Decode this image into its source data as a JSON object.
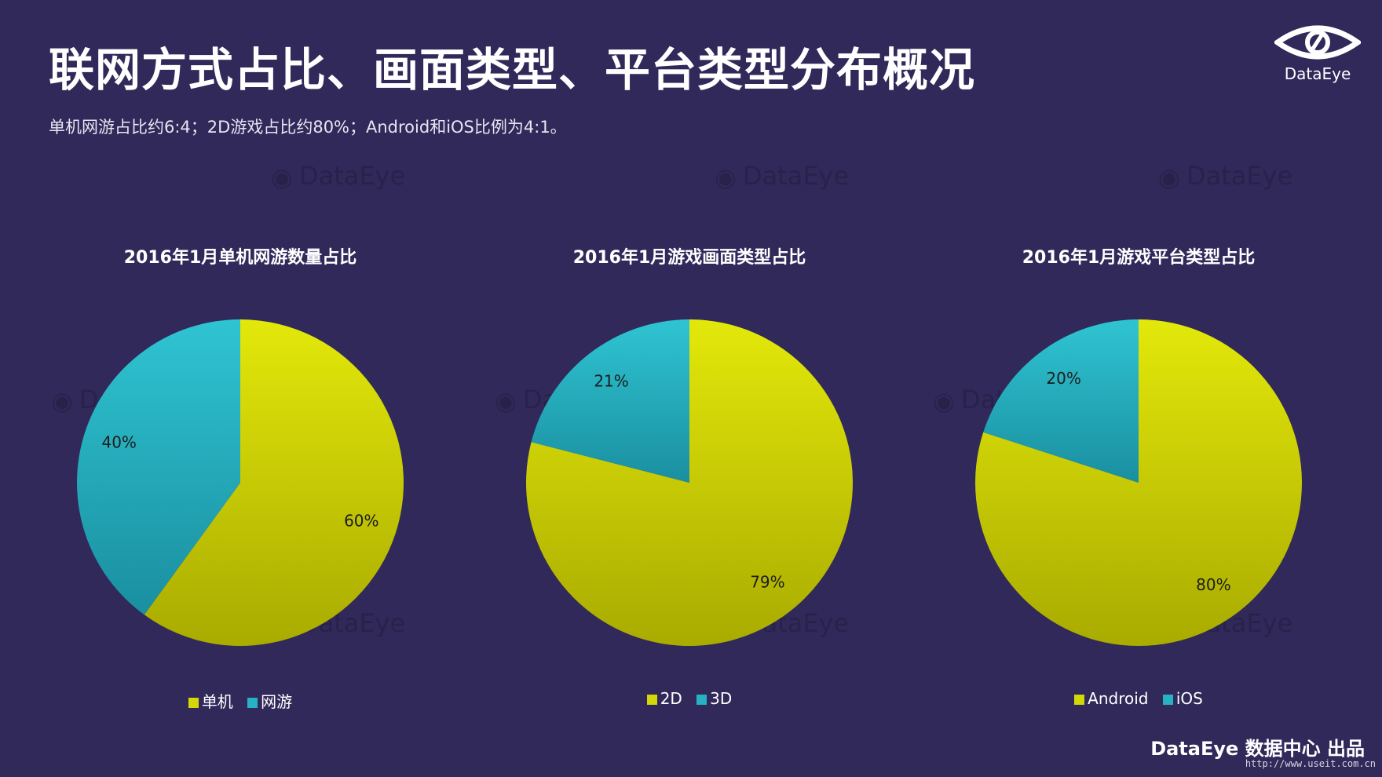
{
  "page": {
    "title": "联网方式占比、画面类型、平台类型分布概况",
    "subtitle": "单机网游占比约6:4；2D游戏占比约80%；Android和iOS比例为4:1。",
    "logo_text": "DataEye",
    "footer": "DataEye 数据中心 出品",
    "watermark_text": "DataEye",
    "watermark_url": "http://www.useit.com.cn"
  },
  "colors": {
    "background": "#30295a",
    "primary_slice_top": "#e3e80a",
    "primary_slice_bottom": "#a9ab00",
    "secondary_slice_top": "#2fc4d2",
    "secondary_slice_bottom": "#1a8fa0"
  },
  "chart_data": [
    {
      "type": "pie",
      "title": "2016年1月单机网游数量占比",
      "categories": [
        "单机",
        "网游"
      ],
      "values": [
        60,
        40
      ],
      "labels": [
        "60%",
        "40%"
      ],
      "legend": "bottom"
    },
    {
      "type": "pie",
      "title": "2016年1月游戏画面类型占比",
      "categories": [
        "2D",
        "3D"
      ],
      "values": [
        79,
        21
      ],
      "labels": [
        "79%",
        "21%"
      ],
      "legend": "bottom"
    },
    {
      "type": "pie",
      "title": "2016年1月游戏平台类型占比",
      "categories": [
        "Android",
        "iOS"
      ],
      "values": [
        80,
        20
      ],
      "labels": [
        "80%",
        "20%"
      ],
      "legend": "bottom"
    }
  ]
}
